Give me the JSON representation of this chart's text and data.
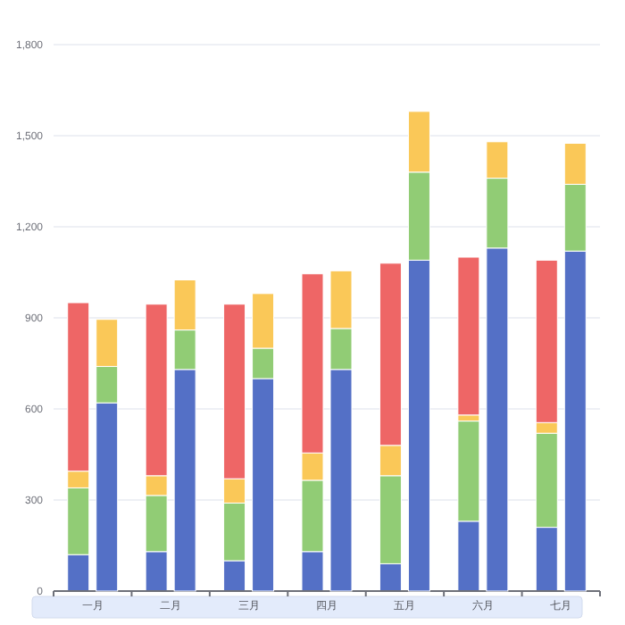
{
  "chart_data": [
    {
      "type": "bar",
      "stacked": true,
      "categories": [
        "一月",
        "二月",
        "三月",
        "四月",
        "五月",
        "六月",
        "七月"
      ],
      "ylim": [
        0,
        1800
      ],
      "yticks": [
        0,
        300,
        600,
        900,
        {
          "value": 1200,
          "label": "1,200"
        },
        {
          "value": 1500,
          "label": "1,500"
        },
        {
          "value": 1800,
          "label": "1,800"
        }
      ],
      "grid": "y",
      "series": [
        {
          "color": "#5470c6",
          "values": [
            120,
            130,
            100,
            130,
            90,
            230,
            210
          ]
        },
        {
          "color": "#91cc75",
          "values": [
            220,
            185,
            190,
            235,
            290,
            330,
            310
          ]
        },
        {
          "color": "#fac858",
          "values": [
            55,
            65,
            80,
            90,
            100,
            20,
            35
          ]
        },
        {
          "color": "#ee6666",
          "values": [
            555,
            565,
            575,
            590,
            600,
            520,
            535
          ]
        }
      ]
    },
    {
      "type": "bar",
      "stacked": true,
      "tick_labels": false,
      "ylim": [
        0,
        1800
      ],
      "series": [
        {
          "color": "#5470c6",
          "values": [
            620,
            730,
            700,
            730,
            1090,
            1130,
            1120
          ]
        },
        {
          "color": "#91cc75",
          "values": [
            120,
            130,
            100,
            135,
            290,
            230,
            220
          ]
        },
        {
          "color": "#fac858",
          "values": [
            155,
            165,
            180,
            190,
            200,
            120,
            135
          ]
        }
      ]
    }
  ]
}
